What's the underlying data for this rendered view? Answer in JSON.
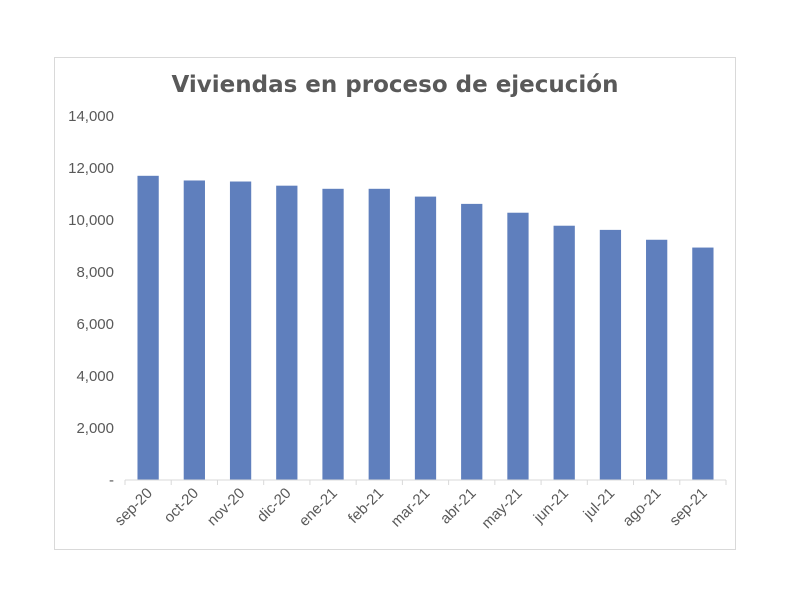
{
  "chart_data": {
    "type": "bar",
    "title": "Viviendas en proceso de ejecución",
    "xlabel": "",
    "ylabel": "",
    "categories": [
      "sep-20",
      "oct-20",
      "nov-20",
      "dic-20",
      "ene-21",
      "feb-21",
      "mar-21",
      "abr-21",
      "may-21",
      "jun-21",
      "jul-21",
      "ago-21",
      "sep-21"
    ],
    "values": [
      11700,
      11520,
      11480,
      11320,
      11200,
      11200,
      10900,
      10620,
      10280,
      9780,
      9620,
      9240,
      8940
    ],
    "ylim": [
      0,
      14000
    ],
    "yticks": [
      0,
      2000,
      4000,
      6000,
      8000,
      10000,
      12000,
      14000
    ],
    "ytick_labels": [
      "-",
      "2,000",
      "4,000",
      "6,000",
      "8,000",
      "10,000",
      "12,000",
      "14,000"
    ],
    "bar_color": "#5f7fbd",
    "axis_color": "#d9d9d9",
    "text_color": "#595959",
    "grid": false,
    "legend": "none"
  }
}
